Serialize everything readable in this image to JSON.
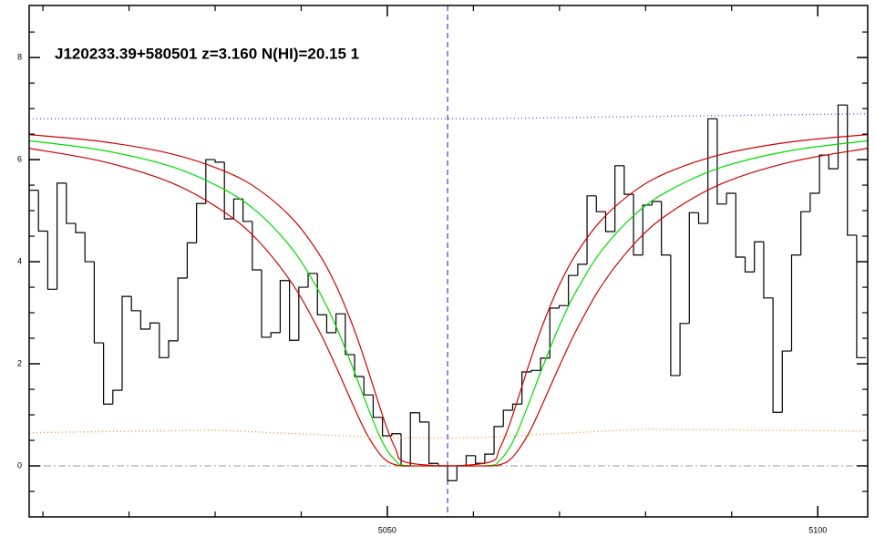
{
  "chart_data": {
    "type": "histogram",
    "title": "J120233.39+580501 z=3.160 N(HI)=20.15 1",
    "bins": [
      5008.4,
      5009.48,
      5010.56,
      5011.64,
      5012.72,
      5013.8,
      5014.88,
      5015.96,
      5017.04,
      5018.12,
      5019.2,
      5020.28,
      5021.36,
      5022.44,
      5023.52,
      5024.6,
      5025.68,
      5026.76,
      5027.84,
      5028.92,
      5030.0,
      5031.08,
      5032.16,
      5033.24,
      5034.32,
      5035.4,
      5036.48,
      5037.56,
      5038.64,
      5039.72,
      5040.8,
      5041.88,
      5042.96,
      5044.04,
      5045.12,
      5046.2,
      5047.28,
      5048.36,
      5049.44,
      5050.52,
      5051.6,
      5052.68,
      5053.76,
      5054.84,
      5055.92,
      5057.0,
      5058.08,
      5059.16,
      5060.24,
      5061.32,
      5062.4,
      5063.48,
      5064.56,
      5065.64,
      5066.72,
      5067.8,
      5068.88,
      5069.96,
      5071.04,
      5072.12,
      5073.2,
      5074.28,
      5075.36,
      5076.44,
      5077.52,
      5078.6,
      5079.68,
      5080.76,
      5081.84,
      5082.92,
      5084.0,
      5085.08,
      5086.16,
      5087.24,
      5088.32,
      5089.4,
      5090.48,
      5091.56,
      5092.64,
      5093.72,
      5094.8,
      5095.88,
      5096.96,
      5098.04,
      5099.12,
      5100.2,
      5101.28,
      5102.36,
      5103.44,
      5104.52,
      5105.6
    ],
    "values": [
      5.4,
      4.6,
      3.46,
      5.54,
      4.75,
      4.57,
      4.0,
      2.41,
      1.21,
      1.48,
      3.32,
      3.04,
      2.68,
      2.8,
      2.12,
      2.45,
      3.68,
      4.37,
      5.14,
      6.0,
      5.95,
      4.84,
      5.23,
      4.79,
      3.84,
      2.52,
      2.61,
      3.63,
      2.46,
      3.5,
      3.77,
      2.96,
      2.61,
      2.98,
      2.18,
      1.75,
      1.39,
      0.95,
      0.59,
      0.63,
      0,
      1.04,
      0.86,
      0.05,
      0,
      -0.29,
      0,
      0.2,
      0.05,
      0.23,
      0.77,
      1.09,
      1.21,
      1.84,
      1.87,
      2.11,
      3.09,
      3.14,
      3.73,
      3.95,
      5.29,
      4.98,
      4.59,
      5.88,
      5.32,
      4.13,
      5.11,
      5.18,
      4.13,
      1.77,
      2.79,
      4.96,
      4.75,
      6.8,
      5.13,
      5.34,
      4.09,
      3.8,
      4.39,
      3.29,
      1.05,
      2.25,
      4.13,
      4.98,
      5.34,
      6.09,
      5.82,
      7.07,
      4.52,
      2.12
    ],
    "color": "#000000",
    "xlim": [
      5008.4,
      5105.8
    ],
    "ylim": [
      -1,
      9.02
    ],
    "xticks": [
      5050,
      5100
    ],
    "yticks": [
      0,
      2,
      4,
      6,
      8
    ],
    "xminor": [
      5010,
      5020,
      5030,
      5040,
      5060,
      5070,
      5080,
      5090
    ],
    "yminor": [
      -0.5,
      0.5,
      1,
      1.5,
      2.5,
      3,
      3.5,
      4.5,
      5,
      5.5,
      6.5,
      7,
      7.5,
      8.5
    ],
    "overlays": [
      {
        "color": "#d00000",
        "style": "solid",
        "x": [
          5008.4,
          5017,
          5025,
          5031,
          5035,
          5039,
          5042,
          5044,
          5046,
          5047.5,
          5049,
          5050,
          5051,
          5052,
          5057,
          5062,
          5063,
          5064,
          5065,
          5066.5,
          5068,
          5070,
          5072,
          5075,
          5079,
          5083,
          5089,
          5097,
          5105.8
        ],
        "values": [
          6.49,
          6.35,
          6.11,
          5.78,
          5.42,
          4.84,
          4.17,
          3.55,
          2.74,
          2.01,
          1.22,
          0.72,
          0.32,
          0.08,
          0,
          0.08,
          0.32,
          0.72,
          1.22,
          2.01,
          2.74,
          3.55,
          4.17,
          4.84,
          5.42,
          5.78,
          6.11,
          6.35,
          6.49
        ]
      },
      {
        "color": "#00dd00",
        "style": "solid",
        "x": [
          5008.4,
          5017,
          5025,
          5031,
          5035,
          5039,
          5042,
          5044,
          5046,
          5047.5,
          5049,
          5050,
          5051,
          5052,
          5057,
          5062,
          5063,
          5064,
          5065,
          5066.5,
          5068,
          5070,
          5072,
          5075,
          5079,
          5083,
          5089,
          5097,
          5105.8
        ],
        "values": [
          6.37,
          6.18,
          5.86,
          5.42,
          4.96,
          4.24,
          3.44,
          2.75,
          1.92,
          1.25,
          0.62,
          0.3,
          0.1,
          0.01,
          0,
          0.01,
          0.1,
          0.3,
          0.62,
          1.25,
          1.92,
          2.75,
          3.44,
          4.24,
          4.96,
          5.42,
          5.86,
          6.18,
          6.37
        ]
      },
      {
        "color": "#d00000",
        "style": "solid",
        "x": [
          5008.4,
          5017,
          5025,
          5031,
          5035,
          5039,
          5042,
          5044,
          5046,
          5047.5,
          5049,
          5050,
          5051,
          5052,
          5057,
          5062,
          5063,
          5064,
          5065,
          5066.5,
          5068,
          5070,
          5072,
          5075,
          5079,
          5083,
          5089,
          5097,
          5105.8
        ],
        "values": [
          6.22,
          5.96,
          5.54,
          4.98,
          4.41,
          3.56,
          2.67,
          1.96,
          1.2,
          0.66,
          0.26,
          0.09,
          0.02,
          0,
          0,
          0,
          0.02,
          0.09,
          0.26,
          0.66,
          1.2,
          1.96,
          2.67,
          3.56,
          4.41,
          4.98,
          5.54,
          5.96,
          6.22
        ]
      },
      {
        "color": "#5a4cff",
        "style": "dotted",
        "x": [
          5008.4,
          5060,
          5105.8
        ],
        "values": [
          6.8,
          6.8,
          6.9
        ]
      },
      {
        "color": "#ff8c1a",
        "style": "dotted",
        "x": [
          5008.4,
          5030,
          5050,
          5060,
          5080,
          5105.8
        ],
        "values": [
          0.65,
          0.7,
          0.55,
          0.55,
          0.72,
          0.68
        ]
      }
    ],
    "vline": 5057.0,
    "vline_color": "#1a1ad0",
    "hline": 0
  }
}
